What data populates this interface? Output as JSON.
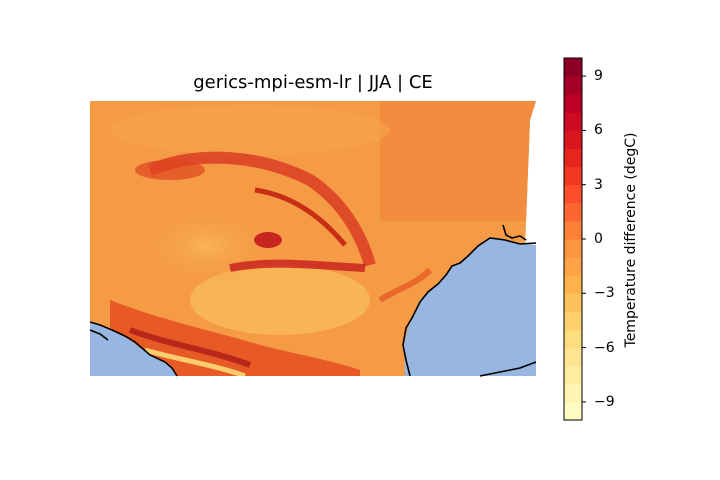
{
  "title": "gerics-mpi-esm-lr | JJA | CE",
  "colorbar": {
    "label": "Temperature difference (degC)",
    "min": -10,
    "max": 10,
    "ticks": [
      "9",
      "6",
      "3",
      "0",
      "−3",
      "−6",
      "−9"
    ],
    "tick_values": [
      9,
      6,
      3,
      0,
      -3,
      -6,
      -9
    ],
    "colormap": [
      "#ffffcc",
      "#ffeda0",
      "#fed976",
      "#feb24c",
      "#fd8d3c",
      "#fc4e2a",
      "#e31a1c",
      "#bd0026",
      "#800026"
    ]
  },
  "map": {
    "ocean_color": "#97b6e1",
    "coast_color": "#000000",
    "dominant_field_color": "#f59a45"
  }
}
